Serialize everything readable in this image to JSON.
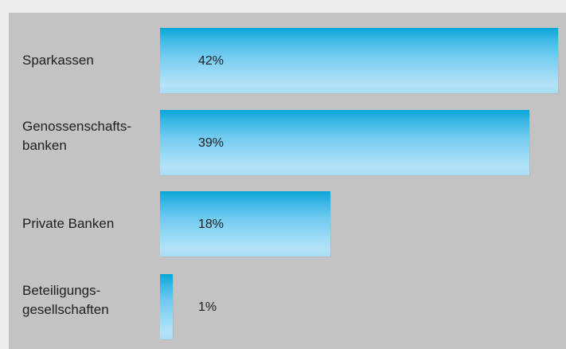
{
  "chart_data": {
    "type": "bar",
    "orientation": "horizontal",
    "categories": [
      "Sparkassen",
      "Genossenschafts-\nbanken",
      "Private Banken",
      "Beteiligungs-\ngesellschaften"
    ],
    "values": [
      42,
      39,
      18,
      1
    ],
    "value_labels": [
      "42%",
      "39%",
      "18%",
      "1%"
    ],
    "xlim": [
      0,
      42
    ],
    "grid": false,
    "legend": "none",
    "colors": {
      "page_background": "#ededed",
      "panel_background": "#c3c3c3",
      "bar_top": "#0aa5d6",
      "bar_bottom": "#b4e3f8",
      "text": "#1e1e1e"
    }
  }
}
